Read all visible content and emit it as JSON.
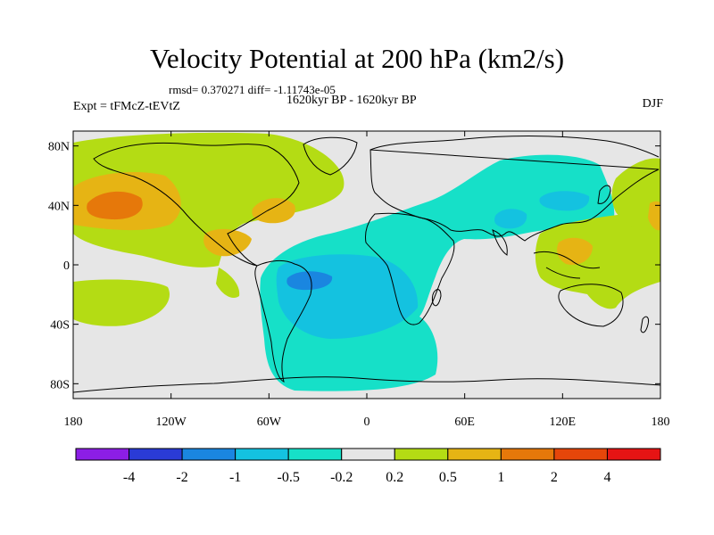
{
  "title": "Velocity Potential at 200 hPa (km2/s)",
  "stats": "rmsd= 0.370271 diff= -1.11743e-05",
  "period": "1620kyr BP - 1620kyr BP",
  "experiment": "Expt = tFMcZ-tEVtZ",
  "season": "DJF",
  "lat_ticks": [
    "80N",
    "40N",
    "0",
    "40S",
    "80S"
  ],
  "lon_ticks": [
    "180",
    "120W",
    "60W",
    "0",
    "60E",
    "120E",
    "180"
  ],
  "colorbar": {
    "colors": [
      "#8c1ee6",
      "#2a3bd6",
      "#1a86e0",
      "#14c2e0",
      "#16e0c8",
      "#e6e6e6",
      "#b4dc14",
      "#e6b414",
      "#e6780a",
      "#e6460a",
      "#e61414"
    ],
    "labels": [
      "-4",
      "-2",
      "-1",
      "-0.5",
      "-0.2",
      "0.2",
      "0.5",
      "1",
      "2",
      "4"
    ]
  },
  "fields": [
    {
      "name": "north-pacific-high",
      "level": "0.5",
      "color": "#b4dc14"
    },
    {
      "name": "north-pacific-core",
      "level": "1",
      "color": "#e6b414"
    },
    {
      "name": "south-pacific-band",
      "level": "0.5",
      "color": "#b4dc14"
    },
    {
      "name": "south-atlantic-low",
      "level": "-0.2",
      "color": "#16e0c8"
    },
    {
      "name": "asia-low",
      "level": "-0.2",
      "color": "#16e0c8"
    },
    {
      "name": "brazil-core",
      "level": "-0.5",
      "color": "#14c2e0"
    },
    {
      "name": "indonesia-high",
      "level": "0.5",
      "color": "#b4dc14"
    }
  ]
}
